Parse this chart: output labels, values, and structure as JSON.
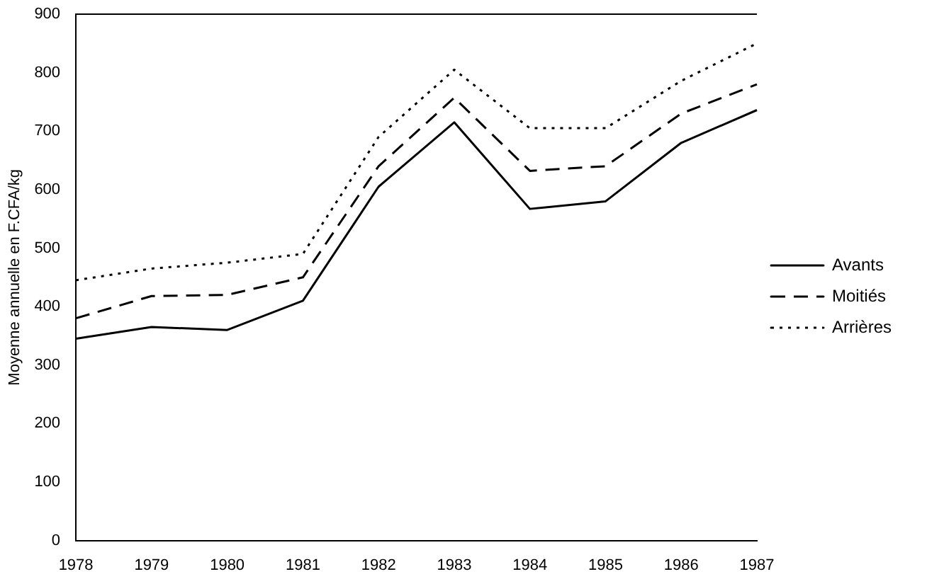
{
  "chart_data": {
    "type": "line",
    "ylabel": "Moyenne annuelle en F.CFA/kg",
    "categories": [
      "1978",
      "1979",
      "1980",
      "1981",
      "1982",
      "1983",
      "1984",
      "1985",
      "1986",
      "1987"
    ],
    "series": [
      {
        "name": "Avants",
        "color": "#000000",
        "line_style": "solid",
        "values": [
          345,
          365,
          360,
          410,
          605,
          715,
          567,
          580,
          680,
          736
        ]
      },
      {
        "name": "Moitiés",
        "color": "#000000",
        "line_style": "dashed",
        "values": [
          380,
          418,
          420,
          450,
          640,
          757,
          632,
          640,
          730,
          780
        ]
      },
      {
        "name": "Arrières",
        "color": "#000000",
        "line_style": "dotted",
        "values": [
          445,
          465,
          475,
          490,
          690,
          805,
          705,
          705,
          786,
          850
        ]
      }
    ],
    "ylim": [
      0,
      900
    ],
    "yticks": [
      0,
      100,
      200,
      300,
      400,
      500,
      600,
      700,
      800,
      900
    ],
    "grid": false,
    "legend": "right",
    "marker": "none"
  }
}
